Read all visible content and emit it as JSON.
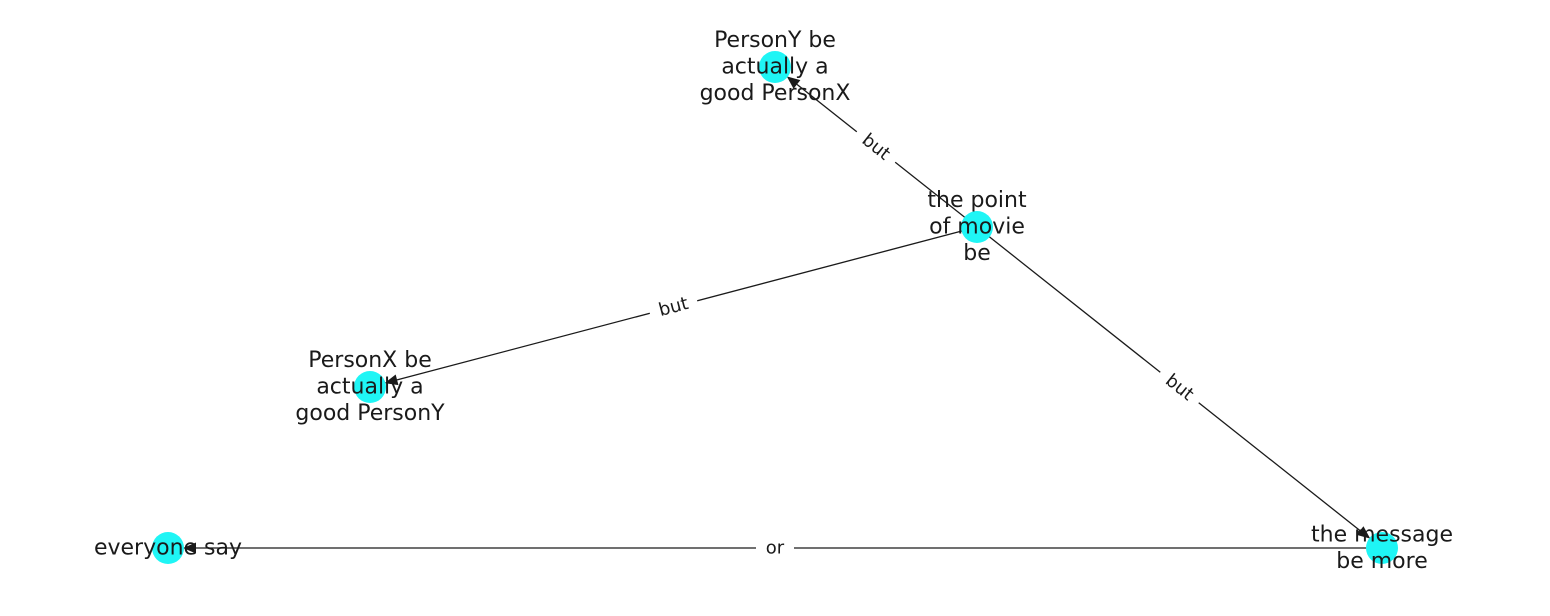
{
  "diagram": {
    "type": "directed-graph",
    "node_color": "#1ff5f5",
    "edge_color": "#1a1a1a",
    "nodes": [
      {
        "id": "n_person_y",
        "lines": [
          "PersonY be",
          "actually a",
          "good PersonX"
        ]
      },
      {
        "id": "n_point",
        "lines": [
          "the point",
          "of movie",
          "be"
        ]
      },
      {
        "id": "n_person_x",
        "lines": [
          "PersonX be",
          "actually a",
          "good PersonY"
        ]
      },
      {
        "id": "n_everyone",
        "lines": [
          "everyone say"
        ]
      },
      {
        "id": "n_message",
        "lines": [
          "the message",
          "be more"
        ]
      }
    ],
    "edges": [
      {
        "id": "e1",
        "source": "n_point",
        "target": "n_person_y",
        "label": "but"
      },
      {
        "id": "e2",
        "source": "n_point",
        "target": "n_person_x",
        "label": "but"
      },
      {
        "id": "e3",
        "source": "n_point",
        "target": "n_message",
        "label": "but"
      },
      {
        "id": "e4",
        "source": "n_message",
        "target": "n_everyone",
        "label": "or"
      }
    ]
  }
}
